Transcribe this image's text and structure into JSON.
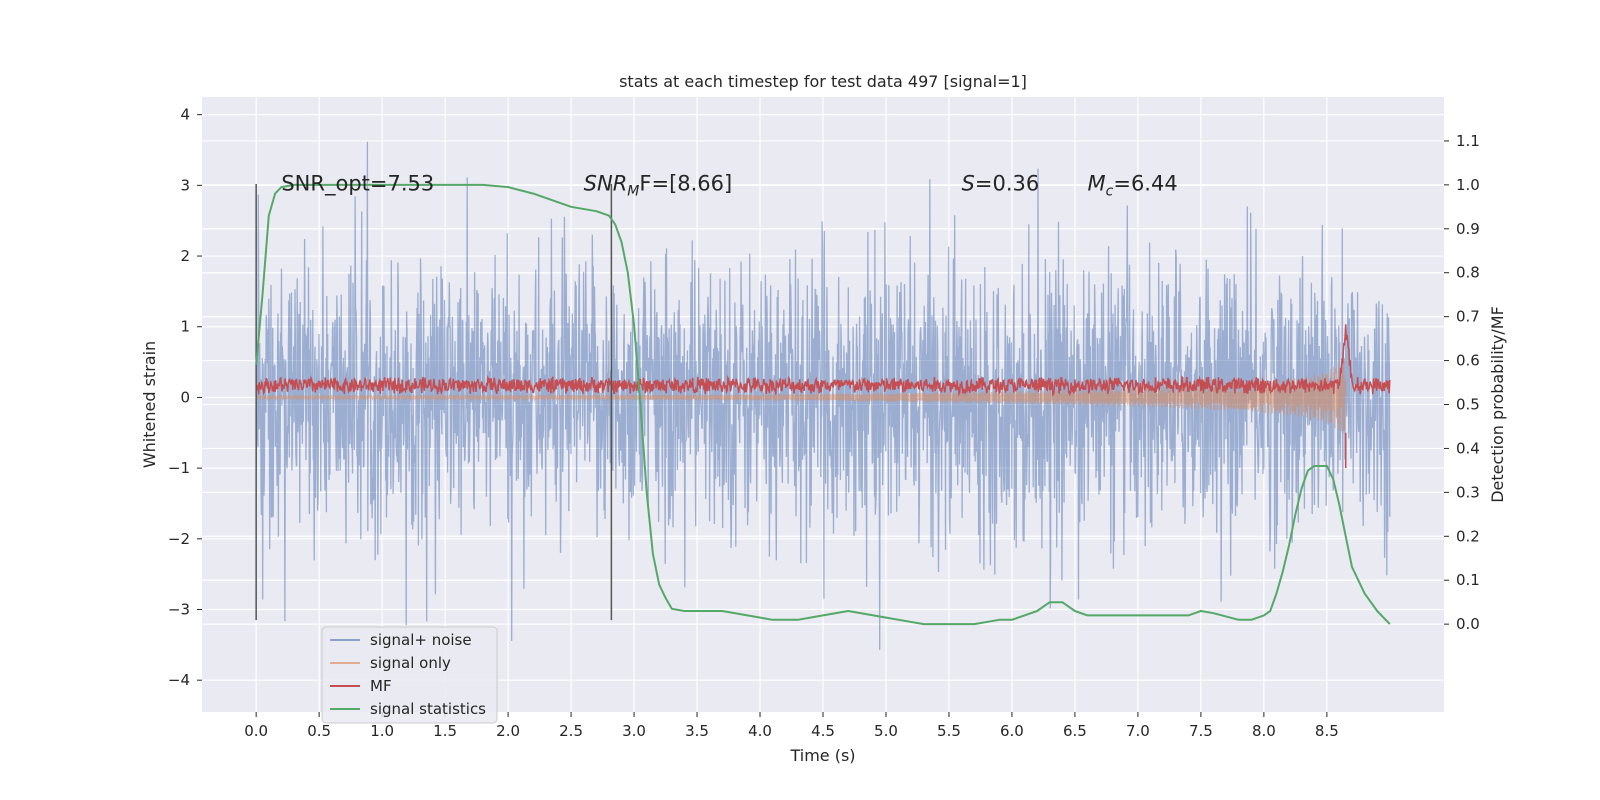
{
  "chart_data": {
    "type": "line",
    "title": "stats at each timestep for test data 497 [signal=1]",
    "xlabel": "Time (s)",
    "ylabel": "Whitened strain",
    "y2label": "Detection probability/MF",
    "xlim": [
      -0.43,
      9.43
    ],
    "ylim": [
      -4.45,
      4.25
    ],
    "y2lim": [
      -0.2,
      1.2
    ],
    "xticks": [
      0.0,
      0.5,
      1.0,
      1.5,
      2.0,
      2.5,
      3.0,
      3.5,
      4.0,
      4.5,
      5.0,
      5.5,
      6.0,
      6.5,
      7.0,
      7.5,
      8.0,
      8.5
    ],
    "yticks": [
      -4,
      -3,
      -2,
      -1,
      0,
      1,
      2,
      3,
      4
    ],
    "y2ticks": [
      0.0,
      0.1,
      0.2,
      0.3,
      0.4,
      0.5,
      0.6,
      0.7,
      0.8,
      0.9,
      1.0,
      1.1
    ],
    "xtick_labels": [
      "0.0",
      "0.5",
      "1.0",
      "1.5",
      "2.0",
      "2.5",
      "3.0",
      "3.5",
      "4.0",
      "4.5",
      "5.0",
      "5.5",
      "6.0",
      "6.5",
      "7.0",
      "7.5",
      "8.0",
      "8.5"
    ],
    "ytick_labels": [
      "−4",
      "−3",
      "−2",
      "−1",
      "0",
      "1",
      "2",
      "3",
      "4"
    ],
    "y2tick_labels": [
      "0.0",
      "0.1",
      "0.2",
      "0.3",
      "0.4",
      "0.5",
      "0.6",
      "0.7",
      "0.8",
      "0.9",
      "1.0",
      "1.1"
    ],
    "grid": true,
    "legend_position": "bottom-left",
    "series": [
      {
        "name": "signal+ noise",
        "color": "#4c72b0",
        "alpha": 0.5,
        "axis": "left",
        "description": "whitened strain noise, roughly within -3.5 to 3.9",
        "x_range": [
          0.0,
          9.0
        ]
      },
      {
        "name": "signal only",
        "color": "#dd8452",
        "alpha": 0.5,
        "axis": "left",
        "x_range": [
          0.0,
          8.65
        ],
        "envelope_x": [
          0.0,
          2.0,
          4.0,
          5.0,
          6.0,
          7.0,
          7.5,
          8.0,
          8.3,
          8.5,
          8.6,
          8.65
        ],
        "envelope_amp": [
          0.02,
          0.025,
          0.04,
          0.06,
          0.09,
          0.13,
          0.17,
          0.22,
          0.28,
          0.37,
          0.48,
          0.6
        ]
      },
      {
        "name": "MF",
        "color": "#c44e52",
        "axis": "left",
        "mean": 0.17,
        "amplitude": 0.12,
        "peak": {
          "x": 8.65,
          "y": 1.0
        }
      },
      {
        "name": "signal statistics",
        "color": "#55a868",
        "axis": "right",
        "x": [
          0.0,
          0.05,
          0.1,
          0.15,
          0.2,
          0.3,
          0.5,
          1.0,
          1.5,
          1.8,
          2.0,
          2.2,
          2.5,
          2.7,
          2.8,
          2.85,
          2.9,
          2.95,
          3.0,
          3.05,
          3.1,
          3.15,
          3.2,
          3.25,
          3.3,
          3.4,
          3.5,
          3.7,
          3.9,
          4.1,
          4.3,
          4.5,
          4.7,
          4.9,
          5.1,
          5.3,
          5.5,
          5.7,
          5.9,
          6.0,
          6.1,
          6.2,
          6.3,
          6.4,
          6.5,
          6.6,
          6.8,
          7.0,
          7.2,
          7.4,
          7.5,
          7.6,
          7.8,
          7.9,
          8.0,
          8.05,
          8.1,
          8.15,
          8.2,
          8.25,
          8.3,
          8.35,
          8.4,
          8.45,
          8.5,
          8.55,
          8.6,
          8.65,
          8.7,
          8.8,
          8.9,
          9.0
        ],
        "y": [
          0.59,
          0.75,
          0.93,
          0.98,
          0.995,
          1.0,
          1.0,
          1.0,
          1.0,
          1.0,
          0.995,
          0.98,
          0.95,
          0.94,
          0.93,
          0.91,
          0.87,
          0.8,
          0.68,
          0.5,
          0.3,
          0.16,
          0.09,
          0.06,
          0.035,
          0.03,
          0.03,
          0.03,
          0.02,
          0.01,
          0.01,
          0.02,
          0.03,
          0.02,
          0.01,
          0.0,
          0.0,
          0.0,
          0.01,
          0.01,
          0.02,
          0.03,
          0.05,
          0.05,
          0.03,
          0.02,
          0.02,
          0.02,
          0.02,
          0.02,
          0.03,
          0.025,
          0.01,
          0.01,
          0.02,
          0.03,
          0.07,
          0.12,
          0.18,
          0.25,
          0.31,
          0.35,
          0.36,
          0.36,
          0.36,
          0.33,
          0.27,
          0.2,
          0.13,
          0.07,
          0.03,
          0.0
        ]
      }
    ],
    "vlines": [
      0.0,
      2.82
    ],
    "annotations": [
      {
        "text": "SNR_opt=7.53",
        "x": 0.2,
        "y": 3.0
      },
      {
        "text": "SNR",
        "sub": "M",
        "after": "F=[8.66]",
        "italic": true,
        "x": 2.6,
        "y": 3.0
      },
      {
        "text": "S",
        "after": "=0.36",
        "italic": true,
        "x": 5.6,
        "y": 3.0
      },
      {
        "text": "M",
        "sub": "c",
        "after": "=6.44",
        "italic": true,
        "x": 6.6,
        "y": 3.0
      }
    ]
  }
}
